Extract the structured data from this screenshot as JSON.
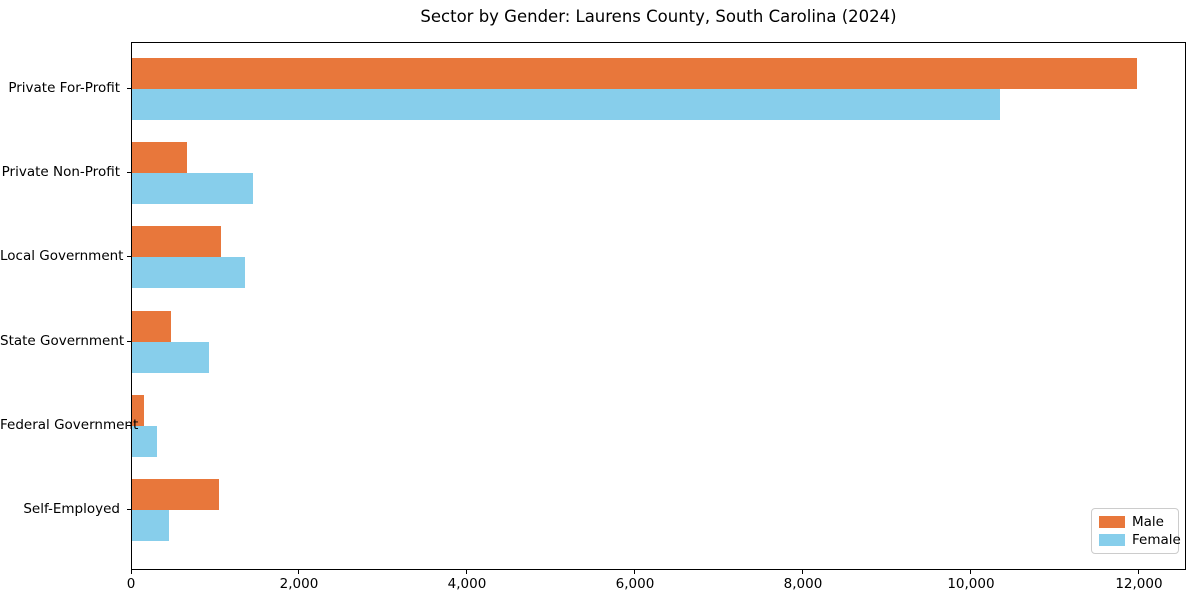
{
  "chart_data": {
    "type": "bar",
    "orientation": "horizontal",
    "title": "Sector by Gender: Laurens County, South Carolina (2024)",
    "categories": [
      "Private For-Profit",
      "Private Non-Profit",
      "Local Government",
      "State Government",
      "Federal Government",
      "Self-Employed"
    ],
    "series": [
      {
        "name": "Male",
        "color": "#e8773b",
        "values": [
          11960,
          650,
          1060,
          460,
          140,
          1040
        ]
      },
      {
        "name": "Female",
        "color": "#87ceeb",
        "values": [
          10330,
          1440,
          1340,
          920,
          300,
          440
        ]
      }
    ],
    "xlabel": "",
    "ylabel": "",
    "xlim": [
      0,
      12560
    ],
    "xticks": [
      0,
      2000,
      4000,
      6000,
      8000,
      10000,
      12000
    ],
    "xtick_labels": [
      "0",
      "2,000",
      "4,000",
      "6,000",
      "8,000",
      "10,000",
      "12,000"
    ],
    "grid": false,
    "legend": {
      "position": "lower right",
      "entries": [
        "Male",
        "Female"
      ]
    }
  },
  "colors": {
    "male": "#e8773b",
    "female": "#87ceeb",
    "spine": "#000000",
    "legend_border": "#cccccc",
    "background": "#ffffff"
  }
}
